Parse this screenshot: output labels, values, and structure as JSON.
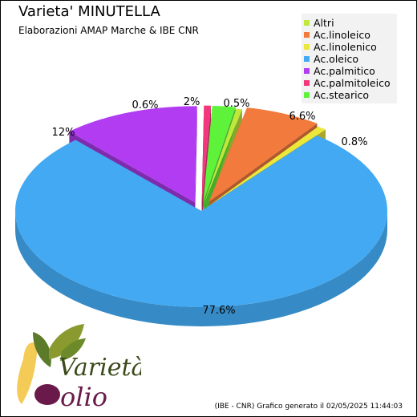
{
  "chart_data": {
    "type": "pie",
    "title": "Varieta' MINUTELLA",
    "subtitle": "Elaborazioni AMAP Marche & IBE CNR",
    "legend_position": "top-right",
    "slices": [
      {
        "name": "Altri",
        "value": 0.5,
        "label": "0.5%",
        "color": "#c0e83a"
      },
      {
        "name": "Ac.linoleico",
        "value": 6.6,
        "label": "6.6%",
        "color": "#f27a3c"
      },
      {
        "name": "Ac.linolenico",
        "value": 0.8,
        "label": "0.8%",
        "color": "#ece73a"
      },
      {
        "name": "Ac.oleico",
        "value": 77.6,
        "label": "77.6%",
        "color": "#42a9f2"
      },
      {
        "name": "Ac.palmitico",
        "value": 12,
        "label": "12%",
        "color": "#b13cf2"
      },
      {
        "name": "Ac.palmitoleico",
        "value": 0.6,
        "label": "0.6%",
        "color": "#f2377d"
      },
      {
        "name": "Ac.stearico",
        "value": 2,
        "label": "2%",
        "color": "#5ef23a"
      }
    ]
  },
  "logo": {
    "line1": "Varietà",
    "line2": "olio"
  },
  "footer": "(IBE - CNR) Grafico generato il 02/05/2025 11:44:03"
}
